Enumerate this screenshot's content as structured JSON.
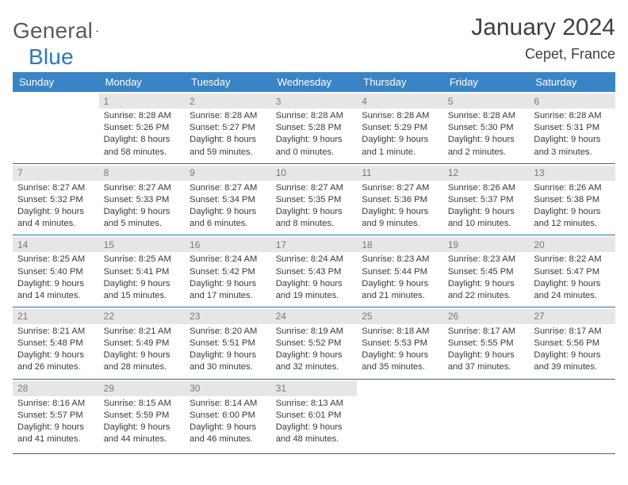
{
  "logo": {
    "word1": "General",
    "word2": "Blue"
  },
  "title": "January 2024",
  "subtitle": "Cepet, France",
  "colors": {
    "header_bg": "#3984c6",
    "header_fg": "#ffffff",
    "row_divider": "#2e6ba6",
    "daynum_bg": "#e6e6e6",
    "daynum_fg": "#7a7a7a",
    "text": "#3a3a3a",
    "logo_gray": "#5b5b5b",
    "logo_blue": "#2e78bd"
  },
  "weekdays": [
    "Sunday",
    "Monday",
    "Tuesday",
    "Wednesday",
    "Thursday",
    "Friday",
    "Saturday"
  ],
  "weeks": [
    [
      {
        "day": "",
        "lines": [
          "",
          "",
          ""
        ]
      },
      {
        "day": "1",
        "lines": [
          "Sunrise: 8:28 AM",
          "Sunset: 5:26 PM",
          "Daylight: 8 hours and 58 minutes."
        ]
      },
      {
        "day": "2",
        "lines": [
          "Sunrise: 8:28 AM",
          "Sunset: 5:27 PM",
          "Daylight: 8 hours and 59 minutes."
        ]
      },
      {
        "day": "3",
        "lines": [
          "Sunrise: 8:28 AM",
          "Sunset: 5:28 PM",
          "Daylight: 9 hours and 0 minutes."
        ]
      },
      {
        "day": "4",
        "lines": [
          "Sunrise: 8:28 AM",
          "Sunset: 5:29 PM",
          "Daylight: 9 hours and 1 minute."
        ]
      },
      {
        "day": "5",
        "lines": [
          "Sunrise: 8:28 AM",
          "Sunset: 5:30 PM",
          "Daylight: 9 hours and 2 minutes."
        ]
      },
      {
        "day": "6",
        "lines": [
          "Sunrise: 8:28 AM",
          "Sunset: 5:31 PM",
          "Daylight: 9 hours and 3 minutes."
        ]
      }
    ],
    [
      {
        "day": "7",
        "lines": [
          "Sunrise: 8:27 AM",
          "Sunset: 5:32 PM",
          "Daylight: 9 hours and 4 minutes."
        ]
      },
      {
        "day": "8",
        "lines": [
          "Sunrise: 8:27 AM",
          "Sunset: 5:33 PM",
          "Daylight: 9 hours and 5 minutes."
        ]
      },
      {
        "day": "9",
        "lines": [
          "Sunrise: 8:27 AM",
          "Sunset: 5:34 PM",
          "Daylight: 9 hours and 6 minutes."
        ]
      },
      {
        "day": "10",
        "lines": [
          "Sunrise: 8:27 AM",
          "Sunset: 5:35 PM",
          "Daylight: 9 hours and 8 minutes."
        ]
      },
      {
        "day": "11",
        "lines": [
          "Sunrise: 8:27 AM",
          "Sunset: 5:36 PM",
          "Daylight: 9 hours and 9 minutes."
        ]
      },
      {
        "day": "12",
        "lines": [
          "Sunrise: 8:26 AM",
          "Sunset: 5:37 PM",
          "Daylight: 9 hours and 10 minutes."
        ]
      },
      {
        "day": "13",
        "lines": [
          "Sunrise: 8:26 AM",
          "Sunset: 5:38 PM",
          "Daylight: 9 hours and 12 minutes."
        ]
      }
    ],
    [
      {
        "day": "14",
        "lines": [
          "Sunrise: 8:25 AM",
          "Sunset: 5:40 PM",
          "Daylight: 9 hours and 14 minutes."
        ]
      },
      {
        "day": "15",
        "lines": [
          "Sunrise: 8:25 AM",
          "Sunset: 5:41 PM",
          "Daylight: 9 hours and 15 minutes."
        ]
      },
      {
        "day": "16",
        "lines": [
          "Sunrise: 8:24 AM",
          "Sunset: 5:42 PM",
          "Daylight: 9 hours and 17 minutes."
        ]
      },
      {
        "day": "17",
        "lines": [
          "Sunrise: 8:24 AM",
          "Sunset: 5:43 PM",
          "Daylight: 9 hours and 19 minutes."
        ]
      },
      {
        "day": "18",
        "lines": [
          "Sunrise: 8:23 AM",
          "Sunset: 5:44 PM",
          "Daylight: 9 hours and 21 minutes."
        ]
      },
      {
        "day": "19",
        "lines": [
          "Sunrise: 8:23 AM",
          "Sunset: 5:45 PM",
          "Daylight: 9 hours and 22 minutes."
        ]
      },
      {
        "day": "20",
        "lines": [
          "Sunrise: 8:22 AM",
          "Sunset: 5:47 PM",
          "Daylight: 9 hours and 24 minutes."
        ]
      }
    ],
    [
      {
        "day": "21",
        "lines": [
          "Sunrise: 8:21 AM",
          "Sunset: 5:48 PM",
          "Daylight: 9 hours and 26 minutes."
        ]
      },
      {
        "day": "22",
        "lines": [
          "Sunrise: 8:21 AM",
          "Sunset: 5:49 PM",
          "Daylight: 9 hours and 28 minutes."
        ]
      },
      {
        "day": "23",
        "lines": [
          "Sunrise: 8:20 AM",
          "Sunset: 5:51 PM",
          "Daylight: 9 hours and 30 minutes."
        ]
      },
      {
        "day": "24",
        "lines": [
          "Sunrise: 8:19 AM",
          "Sunset: 5:52 PM",
          "Daylight: 9 hours and 32 minutes."
        ]
      },
      {
        "day": "25",
        "lines": [
          "Sunrise: 8:18 AM",
          "Sunset: 5:53 PM",
          "Daylight: 9 hours and 35 minutes."
        ]
      },
      {
        "day": "26",
        "lines": [
          "Sunrise: 8:17 AM",
          "Sunset: 5:55 PM",
          "Daylight: 9 hours and 37 minutes."
        ]
      },
      {
        "day": "27",
        "lines": [
          "Sunrise: 8:17 AM",
          "Sunset: 5:56 PM",
          "Daylight: 9 hours and 39 minutes."
        ]
      }
    ],
    [
      {
        "day": "28",
        "lines": [
          "Sunrise: 8:16 AM",
          "Sunset: 5:57 PM",
          "Daylight: 9 hours and 41 minutes."
        ]
      },
      {
        "day": "29",
        "lines": [
          "Sunrise: 8:15 AM",
          "Sunset: 5:59 PM",
          "Daylight: 9 hours and 44 minutes."
        ]
      },
      {
        "day": "30",
        "lines": [
          "Sunrise: 8:14 AM",
          "Sunset: 6:00 PM",
          "Daylight: 9 hours and 46 minutes."
        ]
      },
      {
        "day": "31",
        "lines": [
          "Sunrise: 8:13 AM",
          "Sunset: 6:01 PM",
          "Daylight: 9 hours and 48 minutes."
        ]
      },
      {
        "day": "",
        "lines": [
          "",
          "",
          ""
        ]
      },
      {
        "day": "",
        "lines": [
          "",
          "",
          ""
        ]
      },
      {
        "day": "",
        "lines": [
          "",
          "",
          ""
        ]
      }
    ]
  ]
}
